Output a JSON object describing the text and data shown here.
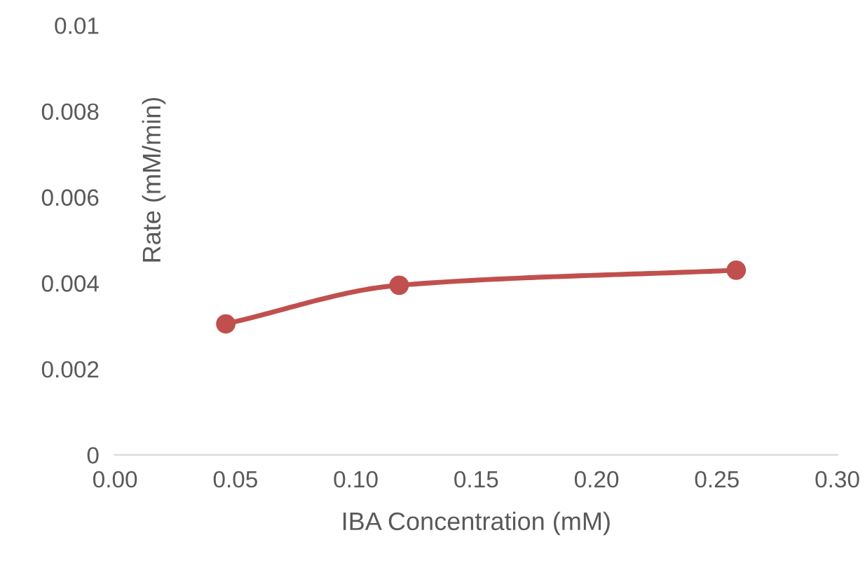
{
  "chart_data": {
    "type": "line",
    "xlabel": "IBA Concentration (mM)",
    "ylabel": "Rate (mM/min)",
    "x": [
      0.046,
      0.118,
      0.258
    ],
    "series": [
      {
        "color": "#c0504d",
        "values": [
          0.00305,
          0.00395,
          0.0043
        ]
      }
    ],
    "xlim": [
      0,
      0.3
    ],
    "xticks": [
      {
        "value": 0,
        "label": "0.00"
      },
      {
        "value": 0.05,
        "label": "0.05"
      },
      {
        "value": 0.1,
        "label": "0.10"
      },
      {
        "value": 0.15,
        "label": "0.15"
      },
      {
        "value": 0.2,
        "label": "0.20"
      },
      {
        "value": 0.25,
        "label": "0.25"
      },
      {
        "value": 0.3,
        "label": "0.30"
      }
    ],
    "ylim": [
      0,
      0.01
    ],
    "yticks": [
      0,
      0.002,
      0.004,
      0.006,
      0.008,
      0.01
    ],
    "grid": false,
    "legend": false,
    "marker": "circle",
    "line_style": "solid"
  }
}
